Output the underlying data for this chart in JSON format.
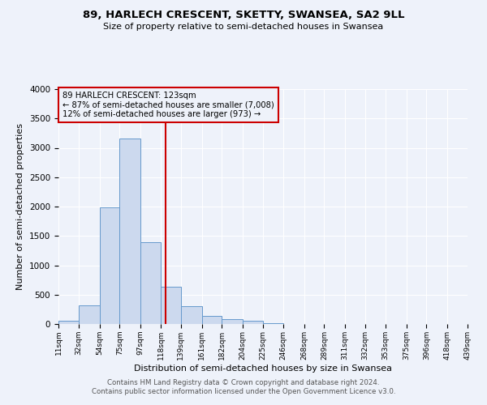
{
  "title": "89, HARLECH CRESCENT, SKETTY, SWANSEA, SA2 9LL",
  "subtitle": "Size of property relative to semi-detached houses in Swansea",
  "xlabel": "Distribution of semi-detached houses by size in Swansea",
  "ylabel": "Number of semi-detached properties",
  "bin_edges": [
    11,
    32,
    54,
    75,
    97,
    118,
    139,
    161,
    182,
    204,
    225,
    246,
    268,
    289,
    311,
    332,
    353,
    375,
    396,
    418,
    439
  ],
  "bin_counts": [
    50,
    320,
    1980,
    3160,
    1390,
    640,
    300,
    140,
    80,
    50,
    20,
    0,
    0,
    0,
    0,
    0,
    0,
    0,
    0,
    0
  ],
  "property_value": 123,
  "bar_facecolor": "#ccd9ee",
  "bar_edgecolor": "#6699cc",
  "vline_color": "#cc0000",
  "annotation_title": "89 HARLECH CRESCENT: 123sqm",
  "annotation_line1": "← 87% of semi-detached houses are smaller (7,008)",
  "annotation_line2": "12% of semi-detached houses are larger (973) →",
  "annotation_box_edgecolor": "#cc0000",
  "ylim": [
    0,
    4000
  ],
  "yticks": [
    0,
    500,
    1000,
    1500,
    2000,
    2500,
    3000,
    3500,
    4000
  ],
  "footer_line1": "Contains HM Land Registry data © Crown copyright and database right 2024.",
  "footer_line2": "Contains public sector information licensed under the Open Government Licence v3.0.",
  "bg_color": "#eef2fa"
}
